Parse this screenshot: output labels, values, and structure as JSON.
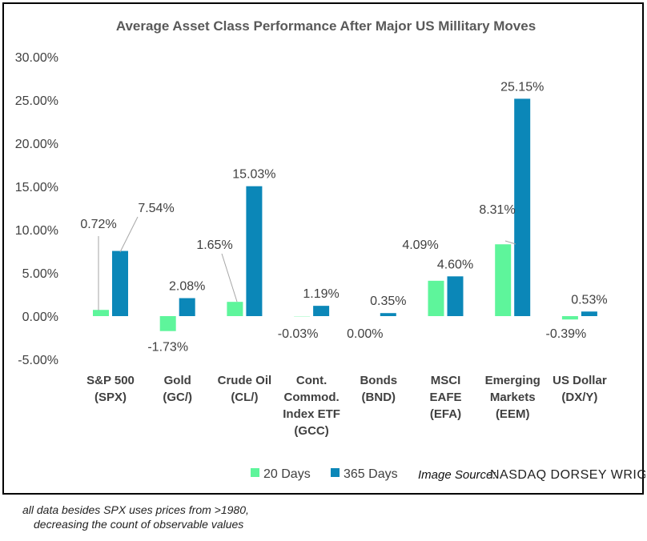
{
  "chart_data": {
    "type": "bar",
    "title": "Average Asset Class Performance After Major US Millitary Moves",
    "categories": [
      [
        "S&P 500",
        "(SPX)"
      ],
      [
        "Gold",
        "(GC/)"
      ],
      [
        "Crude Oil",
        "(CL/)"
      ],
      [
        "Cont.",
        "Commod.",
        "Index ETF",
        "(GCC)"
      ],
      [
        "Bonds",
        "(BND)"
      ],
      [
        "MSCI",
        "EAFE",
        "(EFA)"
      ],
      [
        "Emerging",
        "Markets",
        "(EEM)"
      ],
      [
        "US Dollar",
        "(DX/Y)"
      ]
    ],
    "series": [
      {
        "name": "20 Days",
        "color": "#5ef59b",
        "values": [
          0.72,
          -1.73,
          1.65,
          -0.03,
          0.0,
          4.09,
          8.31,
          -0.39
        ],
        "labels": [
          "0.72%",
          "-1.73%",
          "1.65%",
          "-0.03%",
          "0.00%",
          "4.09%",
          "8.31%",
          "-0.39%"
        ]
      },
      {
        "name": "365 Days",
        "color": "#0b87b8",
        "values": [
          7.54,
          2.08,
          15.03,
          1.19,
          0.35,
          4.6,
          25.15,
          0.53
        ],
        "labels": [
          "7.54%",
          "2.08%",
          "15.03%",
          "1.19%",
          "0.35%",
          "4.60%",
          "25.15%",
          "0.53%"
        ]
      }
    ],
    "ylim": [
      -5,
      30
    ],
    "yticks": [
      "-5.00%",
      "0.00%",
      "5.00%",
      "10.00%",
      "15.00%",
      "20.00%",
      "25.00%",
      "30.00%"
    ],
    "ytick_values": [
      -5,
      0,
      5,
      10,
      15,
      20,
      25,
      30
    ],
    "grid": false,
    "legend": "bottom"
  },
  "source": {
    "prefix": "Image Source:",
    "name": "NASDAQ DORSEY WRIGHT"
  },
  "footnote": [
    "all data besides SPX uses prices from >1980,",
    "decreasing the count of observable values"
  ]
}
